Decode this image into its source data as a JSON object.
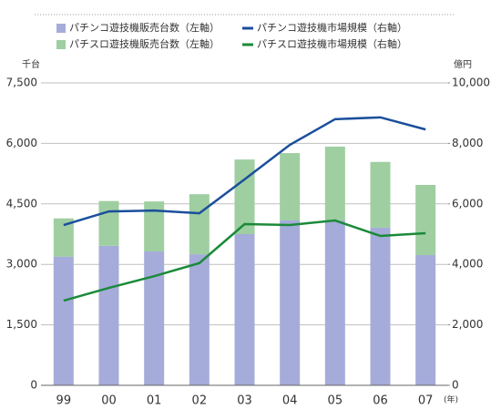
{
  "chart_data": {
    "type": "bar",
    "categories": [
      "99",
      "00",
      "01",
      "02",
      "03",
      "04",
      "05",
      "06",
      "07"
    ],
    "x_unit": "(年)",
    "y_unit": "千台",
    "y2_unit": "億円",
    "series": [
      {
        "name": "パチンコ遊技機販売台数（左軸）",
        "type": "bar",
        "axis": "y",
        "color": "#a5acd9",
        "values": [
          3190,
          3460,
          3320,
          3250,
          3750,
          4090,
          4090,
          3910,
          3230
        ]
      },
      {
        "name": "パチスロ遊技機販売台数（左軸）",
        "type": "bar",
        "axis": "y",
        "color": "#9fcea1",
        "values": [
          950,
          1110,
          1240,
          1490,
          1850,
          1670,
          1830,
          1630,
          1740
        ]
      },
      {
        "name": "パチンコ遊技機市場規模（右軸）",
        "type": "line",
        "axis": "y2",
        "color": "#1a4f9c",
        "values": [
          5300,
          5750,
          5780,
          5690,
          6810,
          7950,
          8800,
          8860,
          8460
        ]
      },
      {
        "name": "パチスロ遊技機市場規模（右軸）",
        "type": "line",
        "axis": "y2",
        "color": "#1a8a3a",
        "values": [
          2800,
          3220,
          3610,
          4040,
          5330,
          5300,
          5450,
          4940,
          5030
        ]
      }
    ],
    "ylim": [
      0,
      7500
    ],
    "yticks": [
      0,
      {
        "value": 1500,
        "label": "1,500"
      },
      {
        "value": 3000,
        "label": "3,000"
      },
      {
        "value": 4500,
        "label": "4,500"
      },
      {
        "value": 6000,
        "label": "6,000"
      },
      {
        "value": 7500,
        "label": "7,500"
      }
    ],
    "y2lim": [
      0,
      10000
    ],
    "y2ticks": [
      0,
      {
        "value": 2000,
        "label": "2,000"
      },
      {
        "value": 4000,
        "label": "4,000"
      },
      {
        "value": 6000,
        "label": "6,000"
      },
      {
        "value": 8000,
        "label": "8,000"
      },
      {
        "value": 10000,
        "label": "10,000"
      }
    ],
    "grid": true
  }
}
